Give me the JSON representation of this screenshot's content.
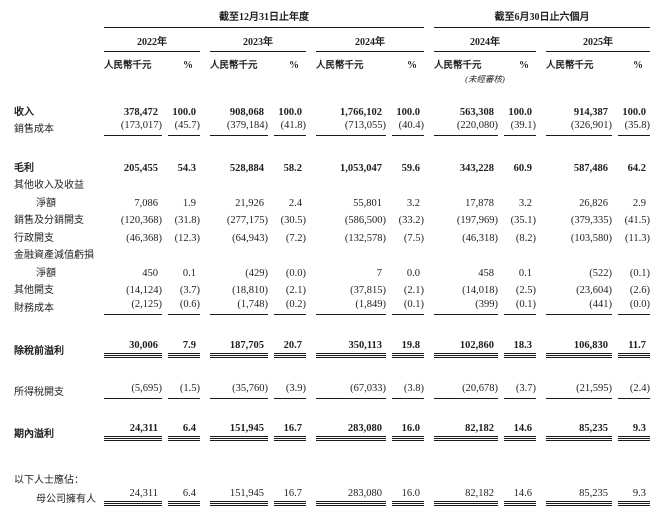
{
  "table": {
    "period_headers": [
      "截至12月31日止年度",
      "截至6月30日止六個月"
    ],
    "years": [
      "2022年",
      "2023年",
      "2024年",
      "2024年",
      "2025年"
    ],
    "unit_label": "人民幣千元",
    "pct_label": "%",
    "unaudited_note": "(未經審核)",
    "rows": [
      {
        "label": "收入",
        "bold": true,
        "rule": "none",
        "values": [
          "378,472",
          "100.0",
          "908,068",
          "100.0",
          "1,766,102",
          "100.0",
          "563,308",
          "100.0",
          "914,387",
          "100.0"
        ]
      },
      {
        "label": "銷售成本",
        "rule": "single",
        "values": [
          "(173,017)",
          "(45.7)",
          "(379,184)",
          "(41.8)",
          "(713,055)",
          "(40.4)",
          "(220,080)",
          "(39.1)",
          "(326,901)",
          "(35.8)"
        ]
      },
      {
        "label": "毛利",
        "bold": true,
        "rule": "none",
        "values": [
          "205,455",
          "54.3",
          "528,884",
          "58.2",
          "1,053,047",
          "59.6",
          "343,228",
          "60.9",
          "587,486",
          "64.2"
        ]
      },
      {
        "label": "其他收入及收益",
        "rule": "none",
        "values": []
      },
      {
        "label": "淨額",
        "indent": true,
        "rule": "none",
        "values": [
          "7,086",
          "1.9",
          "21,926",
          "2.4",
          "55,801",
          "3.2",
          "17,878",
          "3.2",
          "26,826",
          "2.9"
        ]
      },
      {
        "label": "銷售及分銷開支",
        "rule": "none",
        "values": [
          "(120,368)",
          "(31.8)",
          "(277,175)",
          "(30.5)",
          "(586,500)",
          "(33.2)",
          "(197,969)",
          "(35.1)",
          "(379,335)",
          "(41.5)"
        ]
      },
      {
        "label": "行政開支",
        "rule": "none",
        "values": [
          "(46,368)",
          "(12.3)",
          "(64,943)",
          "(7.2)",
          "(132,578)",
          "(7.5)",
          "(46,318)",
          "(8.2)",
          "(103,580)",
          "(11.3)"
        ]
      },
      {
        "label": "金融資產減值虧損",
        "rule": "none",
        "values": []
      },
      {
        "label": "淨額",
        "indent": true,
        "rule": "none",
        "values": [
          "450",
          "0.1",
          "(429)",
          "(0.0)",
          "7",
          "0.0",
          "458",
          "0.1",
          "(522)",
          "(0.1)"
        ]
      },
      {
        "label": "其他開支",
        "rule": "none",
        "values": [
          "(14,124)",
          "(3.7)",
          "(18,810)",
          "(2.1)",
          "(37,815)",
          "(2.1)",
          "(14,018)",
          "(2.5)",
          "(23,604)",
          "(2.6)"
        ]
      },
      {
        "label": "財務成本",
        "rule": "single",
        "values": [
          "(2,125)",
          "(0.6)",
          "(1,748)",
          "(0.2)",
          "(1,849)",
          "(0.1)",
          "(399)",
          "(0.1)",
          "(441)",
          "(0.0)"
        ]
      },
      {
        "label": "除稅前溢利",
        "bold": true,
        "rule": "total",
        "values": [
          "30,006",
          "7.9",
          "187,705",
          "20.7",
          "350,113",
          "19.8",
          "102,860",
          "18.3",
          "106,830",
          "11.7"
        ]
      },
      {
        "label": "所得稅開支",
        "rule": "single",
        "values": [
          "(5,695)",
          "(1.5)",
          "(35,760)",
          "(3.9)",
          "(67,033)",
          "(3.8)",
          "(20,678)",
          "(3.7)",
          "(21,595)",
          "(2.4)"
        ]
      },
      {
        "label": "期內溢利",
        "bold": true,
        "rule": "total",
        "values": [
          "24,311",
          "6.4",
          "151,945",
          "16.7",
          "283,080",
          "16.0",
          "82,182",
          "14.6",
          "85,235",
          "9.3"
        ]
      },
      {
        "label": "以下人士應佔：",
        "rule": "none",
        "values": []
      },
      {
        "label": "母公司擁有人",
        "indent": true,
        "rule": "total",
        "values": [
          "24,311",
          "6.4",
          "151,945",
          "16.7",
          "283,080",
          "16.0",
          "82,182",
          "14.6",
          "85,235",
          "9.3"
        ]
      }
    ]
  }
}
